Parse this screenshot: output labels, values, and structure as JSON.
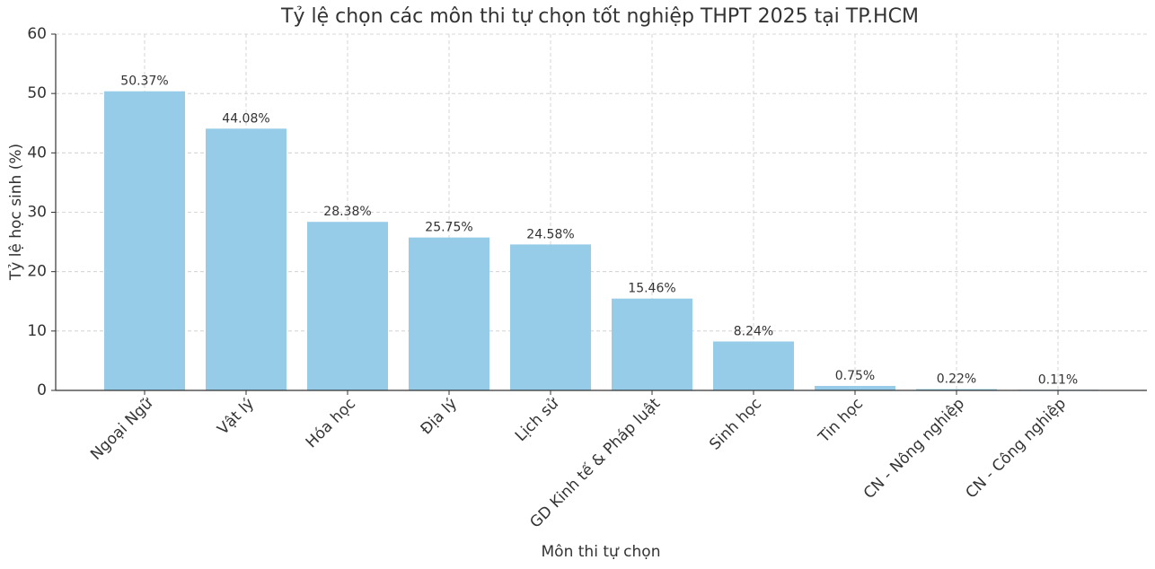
{
  "chart_data": {
    "type": "bar",
    "title": "Tỷ lệ chọn các môn thi tự chọn tốt nghiệp THPT 2025 tại TP.HCM",
    "x_label": "Môn thi tự chọn",
    "y_label": "Tỷ lệ học sinh (%)",
    "categories": [
      "Ngoại Ngữ",
      "Vật lý",
      "Hóa học",
      "Địa lý",
      "Lịch sử",
      "GD Kinh tế & Pháp luật",
      "Sinh học",
      "Tin học",
      "CN - Nông nghiệp",
      "CN - Công nghiệp"
    ],
    "values": [
      50.37,
      44.08,
      28.38,
      25.75,
      24.58,
      15.46,
      8.24,
      0.75,
      0.22,
      0.11
    ],
    "value_labels": [
      "50.37%",
      "44.08%",
      "28.38%",
      "25.75%",
      "24.58%",
      "15.46%",
      "8.24%",
      "0.75%",
      "0.22%",
      "0.11%"
    ],
    "color": "#97cce8",
    "ylim": [
      0,
      60
    ],
    "yticks": [
      0,
      10,
      20,
      30,
      40,
      50,
      60
    ],
    "grid": true
  }
}
